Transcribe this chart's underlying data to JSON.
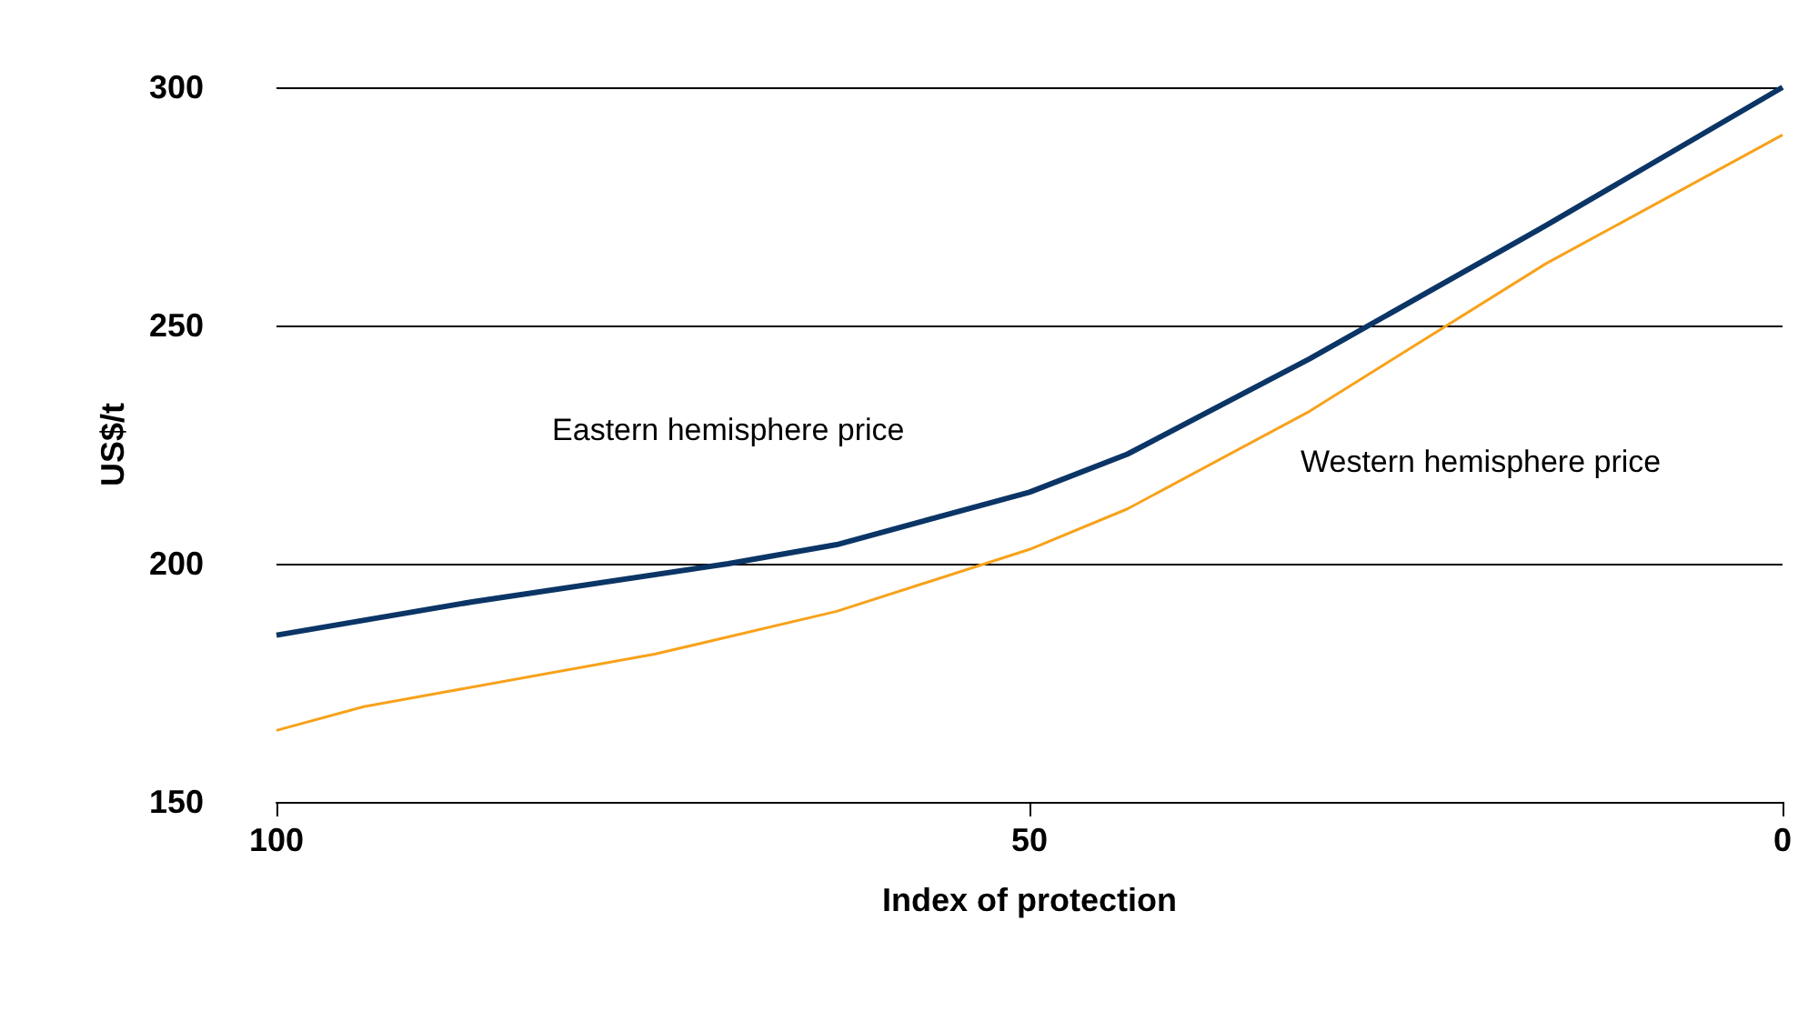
{
  "chart_data": {
    "type": "line",
    "xlabel": "Index of protection",
    "ylabel": "US$/t",
    "xlim": [
      100,
      0
    ],
    "xticks": [
      100,
      50,
      0
    ],
    "ylim": [
      150,
      300
    ],
    "yticks": [
      150,
      200,
      250,
      300
    ],
    "grid": "y",
    "legend": false,
    "marker": "none",
    "line_style": "solid",
    "series": [
      {
        "name": "Eastern hemisphere price",
        "color": "#0b3566",
        "x": [
          100,
          87,
          70,
          62.8,
          50,
          43.5,
          31.4,
          15.7,
          0
        ],
        "values": [
          185,
          192,
          200,
          204,
          215,
          223,
          243,
          271,
          300
        ]
      },
      {
        "name": "Western hemisphere price",
        "color": "#f7a21b",
        "x": [
          100,
          94.2,
          74.9,
          62.8,
          50,
          43.5,
          31.4,
          15.7,
          0
        ],
        "values": [
          165,
          170,
          181,
          190,
          203,
          211.5,
          232,
          263,
          290
        ]
      }
    ]
  }
}
